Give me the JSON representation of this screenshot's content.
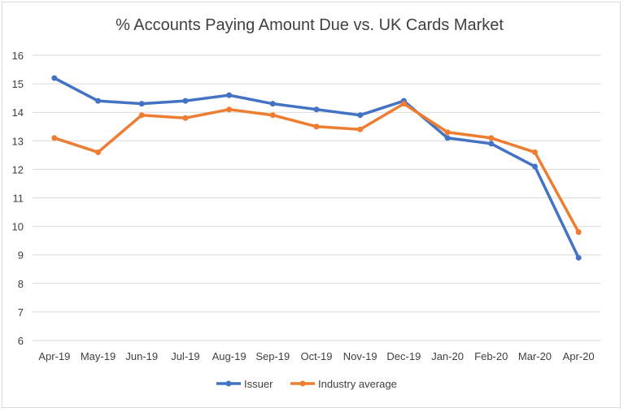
{
  "chart_data": {
    "type": "line",
    "title": "% Accounts Paying Amount Due vs. UK Cards Market",
    "categories": [
      "Apr-19",
      "May-19",
      "Jun-19",
      "Jul-19",
      "Aug-19",
      "Sep-19",
      "Oct-19",
      "Nov-19",
      "Dec-19",
      "Jan-20",
      "Feb-20",
      "Mar-20",
      "Apr-20"
    ],
    "series": [
      {
        "name": "Issuer",
        "color": "#4472c4",
        "values": [
          15.2,
          14.4,
          14.3,
          14.4,
          14.6,
          14.3,
          14.1,
          13.9,
          14.4,
          13.1,
          12.9,
          12.1,
          8.9
        ]
      },
      {
        "name": "Industry average",
        "color": "#ed7d31",
        "values": [
          13.1,
          12.6,
          13.9,
          13.8,
          14.1,
          13.9,
          13.5,
          13.4,
          14.3,
          13.3,
          13.1,
          12.6,
          9.8
        ]
      }
    ],
    "ylim": [
      6,
      16
    ],
    "yticks": [
      6,
      7,
      8,
      9,
      10,
      11,
      12,
      13,
      14,
      15,
      16
    ],
    "grid": true,
    "legend": "bottom",
    "xlabel": "",
    "ylabel": ""
  }
}
